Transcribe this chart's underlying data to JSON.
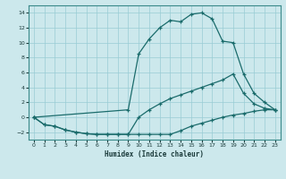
{
  "xlabel": "Humidex (Indice chaleur)",
  "bg_color": "#cce8ec",
  "grid_color": "#99ccd4",
  "line_color": "#1a6b6b",
  "xlim": [
    -0.5,
    23.5
  ],
  "ylim": [
    -3,
    15
  ],
  "xticks": [
    0,
    1,
    2,
    3,
    4,
    5,
    6,
    7,
    8,
    9,
    10,
    11,
    12,
    13,
    14,
    15,
    16,
    17,
    18,
    19,
    20,
    21,
    22,
    23
  ],
  "yticks": [
    -2,
    0,
    2,
    4,
    6,
    8,
    10,
    12,
    14
  ],
  "curve_upper_x": [
    0,
    9,
    10,
    11,
    12,
    13,
    14,
    15,
    16,
    17,
    18,
    19,
    20,
    21,
    22,
    23
  ],
  "curve_upper_y": [
    0,
    1,
    8.5,
    10.5,
    12,
    13,
    12.8,
    13.8,
    14,
    13.2,
    10.2,
    10,
    5.8,
    3.2,
    2.0,
    1.0
  ],
  "curve_middle_x": [
    0,
    1,
    2,
    3,
    4,
    5,
    6,
    7,
    8,
    9,
    10,
    11,
    12,
    13,
    14,
    15,
    16,
    17,
    18,
    19,
    20,
    21,
    22,
    23
  ],
  "curve_middle_y": [
    0,
    -1,
    -1.2,
    -1.7,
    -2,
    -2.2,
    -2.3,
    -2.3,
    -2.3,
    -2.3,
    0.0,
    1.0,
    1.8,
    2.5,
    3.0,
    3.5,
    4.0,
    4.5,
    5.0,
    5.8,
    3.2,
    1.8,
    1.2,
    1.0
  ],
  "curve_bottom_x": [
    0,
    1,
    2,
    3,
    4,
    5,
    6,
    7,
    8,
    9,
    10,
    11,
    12,
    13,
    14,
    15,
    16,
    17,
    18,
    19,
    20,
    21,
    22,
    23
  ],
  "curve_bottom_y": [
    0,
    -1,
    -1.2,
    -1.7,
    -2,
    -2.2,
    -2.3,
    -2.3,
    -2.3,
    -2.3,
    -2.3,
    -2.3,
    -2.3,
    -2.3,
    -1.8,
    -1.2,
    -0.8,
    -0.4,
    0.0,
    0.3,
    0.5,
    0.8,
    1.0,
    1.0
  ]
}
